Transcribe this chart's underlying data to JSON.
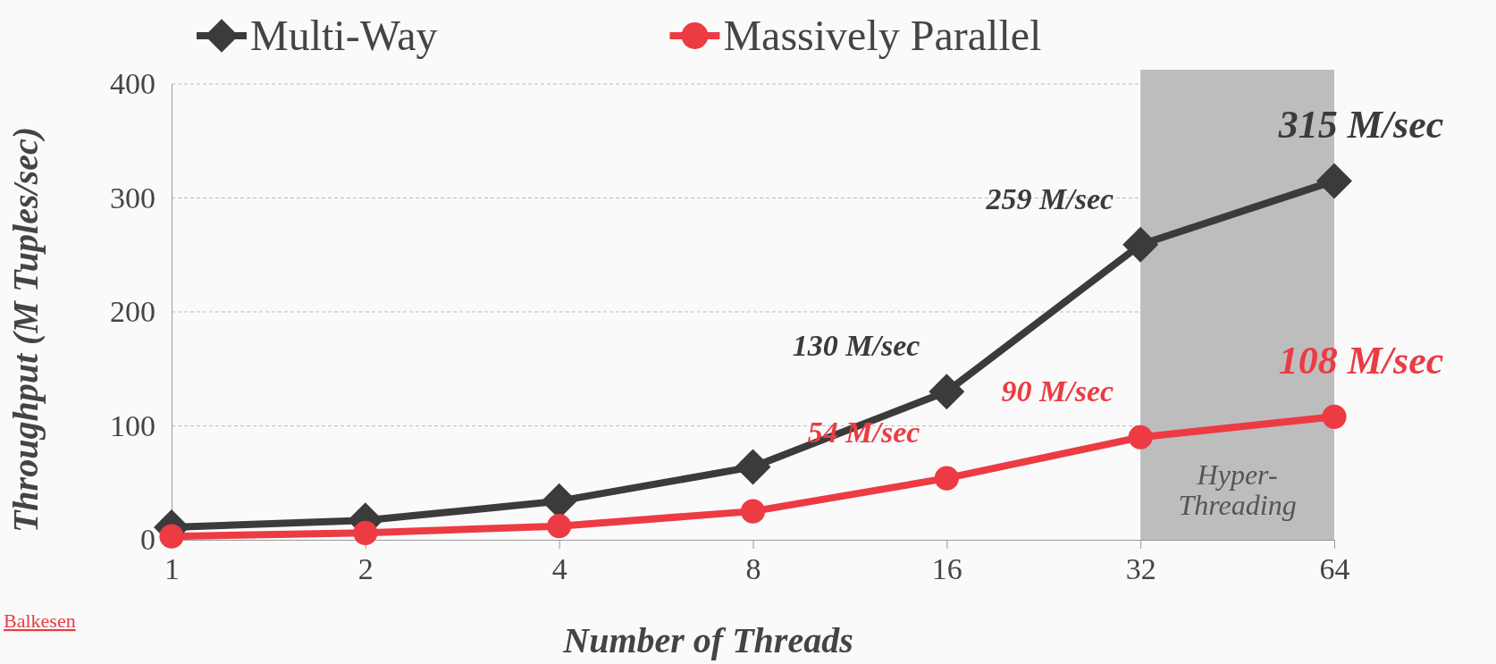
{
  "chart_data": {
    "type": "line",
    "xlabel": "Number of Threads",
    "ylabel": "Throughput (M Tuples/sec)",
    "categories": [
      "1",
      "2",
      "4",
      "8",
      "16",
      "32",
      "64"
    ],
    "series": [
      {
        "name": "Multi-Way",
        "color": "#3b3b3b",
        "marker": "diamond",
        "values": [
          11,
          17,
          34,
          64,
          130,
          259,
          315
        ],
        "value_labels": [
          null,
          null,
          null,
          null,
          "130 M/sec",
          "259 M/sec",
          "315 M/sec"
        ]
      },
      {
        "name": "Massively Parallel",
        "color": "#ec3b43",
        "marker": "circle",
        "values": [
          3,
          6,
          12,
          25,
          54,
          90,
          108
        ],
        "value_labels": [
          null,
          null,
          null,
          null,
          "54 M/sec",
          "90 M/sec",
          "108 M/sec"
        ]
      }
    ],
    "ylim": [
      0,
      400
    ],
    "yticks": [
      0,
      100,
      200,
      300,
      400
    ],
    "grid": "y",
    "legend": "top",
    "bands": [
      {
        "axis": "x",
        "from": "32",
        "to": "64",
        "label": "Hyper-Threading",
        "color": "#bdbdbd"
      }
    ],
    "annotations": [
      "Balkesen"
    ]
  }
}
